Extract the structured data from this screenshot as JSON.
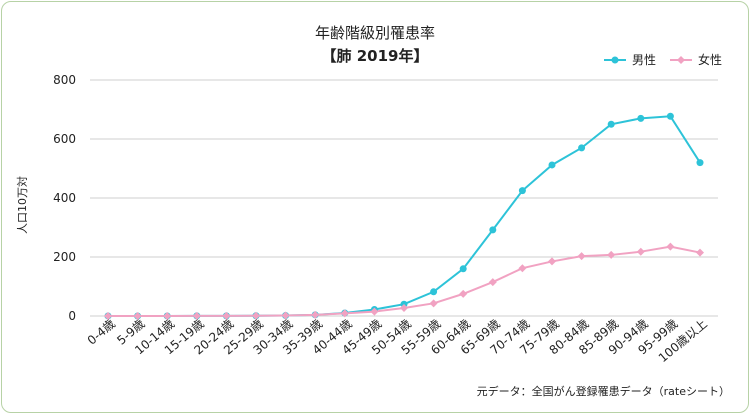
{
  "chart_data": {
    "type": "line",
    "title": "年齢階級別罹患率",
    "subtitle": "【肺 2019年】",
    "ylabel": "人口10万対",
    "xlabel": "",
    "ylim": [
      0,
      800
    ],
    "yticks": [
      0,
      200,
      400,
      600,
      800
    ],
    "grid": true,
    "legend_position": "top-right",
    "categories": [
      "0-4歳",
      "5-9歳",
      "10-14歳",
      "15-19歳",
      "20-24歳",
      "25-29歳",
      "30-34歳",
      "35-39歳",
      "40-44歳",
      "45-49歳",
      "50-54歳",
      "55-59歳",
      "60-64歳",
      "65-69歳",
      "70-74歳",
      "75-79歳",
      "80-84歳",
      "85-89歳",
      "90-94歳",
      "95-99歳",
      "100歳以上"
    ],
    "series": [
      {
        "name": "男性",
        "color": "#2dc3d8",
        "values": [
          0.2,
          0.1,
          0.2,
          0.3,
          0.5,
          0.8,
          1.5,
          4,
          10,
          22,
          40,
          82,
          160,
          292,
          425,
          512,
          570,
          650,
          670,
          677,
          520
        ]
      },
      {
        "name": "女性",
        "color": "#f1a2c2",
        "values": [
          0.1,
          0.1,
          0.2,
          0.3,
          0.5,
          0.8,
          1.5,
          4,
          9,
          15,
          27,
          43,
          75,
          115,
          162,
          185,
          203,
          207,
          218,
          235,
          215
        ]
      }
    ],
    "source": "元データ：全国がん登録罹患データ（rateシート）"
  }
}
